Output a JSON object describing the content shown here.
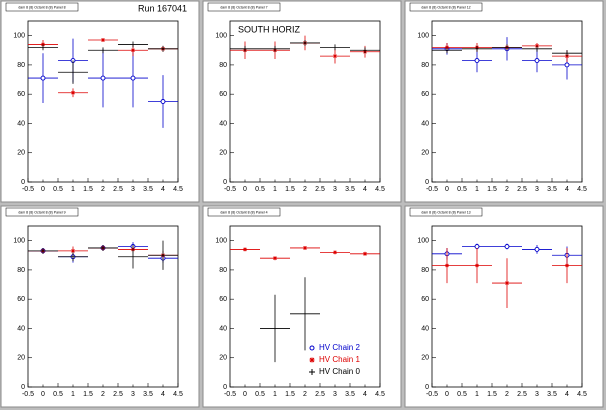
{
  "chart_data": [
    {
      "type": "scatter",
      "title": "dam 8 (8) Octant 8 (8) Panel 8",
      "annotation": "Run 167041",
      "x": [
        0,
        1,
        2,
        3,
        4
      ],
      "xlim": [
        -0.5,
        4.5
      ],
      "xticks": [
        -0.5,
        0,
        0.5,
        1,
        1.5,
        2,
        2.5,
        3,
        3.5,
        4,
        4.5
      ],
      "ylim": [
        0,
        110
      ],
      "yticks": [
        0,
        20,
        40,
        60,
        80,
        100
      ],
      "series": [
        {
          "color": "#0000cc",
          "marker": "circle",
          "values": [
            71,
            83,
            71,
            71,
            55
          ],
          "errors": [
            17,
            15,
            20,
            20,
            18
          ]
        },
        {
          "color": "#dd0000",
          "marker": "star",
          "values": [
            94,
            61,
            97,
            90,
            91
          ],
          "errors": [
            3,
            3,
            1,
            4,
            2
          ]
        },
        {
          "color": "#000000",
          "marker": "cross",
          "values": [
            92,
            75,
            90,
            94,
            91
          ],
          "errors": [
            2,
            8,
            2,
            2,
            2
          ]
        }
      ]
    },
    {
      "type": "scatter",
      "title": "dam 8 (8) Octant 8 (8) Panel 7",
      "annotation": "SOUTH HORIZ",
      "x": [
        0,
        1,
        2,
        3,
        4
      ],
      "xlim": [
        -0.5,
        4.5
      ],
      "xticks": [
        -0.5,
        0,
        0.5,
        1,
        1.5,
        2,
        2.5,
        3,
        3.5,
        4,
        4.5
      ],
      "ylim": [
        0,
        110
      ],
      "yticks": [
        0,
        20,
        40,
        60,
        80,
        100
      ],
      "series": [
        {
          "color": "#dd0000",
          "marker": "star",
          "values": [
            90,
            90,
            95,
            86,
            89
          ],
          "errors": [
            6,
            6,
            5,
            5,
            4
          ]
        },
        {
          "color": "#000000",
          "marker": "cross",
          "values": [
            91,
            91,
            95,
            92,
            90
          ],
          "errors": [
            2,
            2,
            2,
            2,
            2
          ]
        }
      ]
    },
    {
      "type": "scatter",
      "title": "dam 8 (8) Octant 8 (8) Panel 12",
      "x": [
        0,
        1,
        2,
        3,
        4
      ],
      "xlim": [
        -0.5,
        4.5
      ],
      "xticks": [
        -0.5,
        0,
        0.5,
        1,
        1.5,
        2,
        2.5,
        3,
        3.5,
        4,
        4.5
      ],
      "ylim": [
        0,
        110
      ],
      "yticks": [
        0,
        20,
        40,
        60,
        80,
        100
      ],
      "series": [
        {
          "color": "#0000cc",
          "marker": "circle",
          "values": [
            91,
            83,
            91,
            83,
            80
          ],
          "errors": [
            4,
            8,
            8,
            8,
            10
          ]
        },
        {
          "color": "#dd0000",
          "marker": "star",
          "values": [
            92,
            92,
            92,
            93,
            86
          ],
          "errors": [
            3,
            3,
            2,
            2,
            4
          ]
        },
        {
          "color": "#000000",
          "marker": "cross",
          "values": [
            90,
            91,
            92,
            91,
            88
          ],
          "errors": [
            2,
            2,
            2,
            2,
            2
          ]
        }
      ]
    },
    {
      "type": "scatter",
      "title": "dam 8 (8) Octant 8 (8) Panel 9",
      "x": [
        0,
        1,
        2,
        3,
        4
      ],
      "xlim": [
        -0.5,
        4.5
      ],
      "xticks": [
        -0.5,
        0,
        0.5,
        1,
        1.5,
        2,
        2.5,
        3,
        3.5,
        4,
        4.5
      ],
      "ylim": [
        0,
        110
      ],
      "yticks": [
        0,
        20,
        40,
        60,
        80,
        100
      ],
      "series": [
        {
          "color": "#0000cc",
          "marker": "circle",
          "values": [
            93,
            89,
            95,
            96,
            88
          ],
          "errors": [
            2,
            4,
            2,
            3,
            3
          ]
        },
        {
          "color": "#dd0000",
          "marker": "star",
          "values": [
            93,
            93,
            95,
            94,
            90
          ],
          "errors": [
            2,
            3,
            2,
            2,
            3
          ]
        },
        {
          "color": "#000000",
          "marker": "cross",
          "values": [
            93,
            89,
            95,
            89,
            90
          ],
          "errors": [
            2,
            3,
            2,
            8,
            10
          ]
        }
      ]
    },
    {
      "type": "scatter",
      "title": "dam 8 (8) Octant 8 (8) Panel 4",
      "legend": "bottom-right",
      "x": [
        0,
        1,
        2,
        3,
        4
      ],
      "xlim": [
        -0.5,
        4.5
      ],
      "xticks": [
        -0.5,
        0,
        0.5,
        1,
        1.5,
        2,
        2.5,
        3,
        3.5,
        4,
        4.5
      ],
      "ylim": [
        0,
        110
      ],
      "yticks": [
        0,
        20,
        40,
        60,
        80,
        100
      ],
      "series": [
        {
          "name": "HV Chain 2",
          "color": "#0000cc",
          "marker": "circle",
          "values": [
            null,
            null,
            null,
            null,
            null
          ],
          "errors": [
            null,
            null,
            null,
            null,
            null
          ]
        },
        {
          "name": "HV Chain 1",
          "color": "#dd0000",
          "marker": "star",
          "values": [
            94,
            88,
            95,
            92,
            91
          ],
          "errors": [
            1,
            1,
            1,
            1,
            1
          ]
        },
        {
          "name": "HV Chain 0",
          "color": "#000000",
          "marker": "cross",
          "values": [
            null,
            40,
            50,
            null,
            null
          ],
          "errors": [
            null,
            23,
            25,
            null,
            null
          ]
        }
      ]
    },
    {
      "type": "scatter",
      "title": "dam 8 (8) Octant 8 (8) Panel 13",
      "x": [
        0,
        1,
        2,
        3,
        4
      ],
      "xlim": [
        -0.5,
        4.5
      ],
      "xticks": [
        -0.5,
        0,
        0.5,
        1,
        1.5,
        2,
        2.5,
        3,
        3.5,
        4,
        4.5
      ],
      "ylim": [
        0,
        110
      ],
      "yticks": [
        0,
        20,
        40,
        60,
        80,
        100
      ],
      "series": [
        {
          "color": "#0000cc",
          "marker": "circle",
          "values": [
            91,
            96,
            96,
            94,
            90
          ],
          "errors": [
            4,
            2,
            2,
            3,
            6
          ]
        },
        {
          "color": "#dd0000",
          "marker": "star",
          "values": [
            83,
            83,
            71,
            null,
            83
          ],
          "errors": [
            12,
            12,
            17,
            null,
            12
          ]
        }
      ]
    }
  ]
}
